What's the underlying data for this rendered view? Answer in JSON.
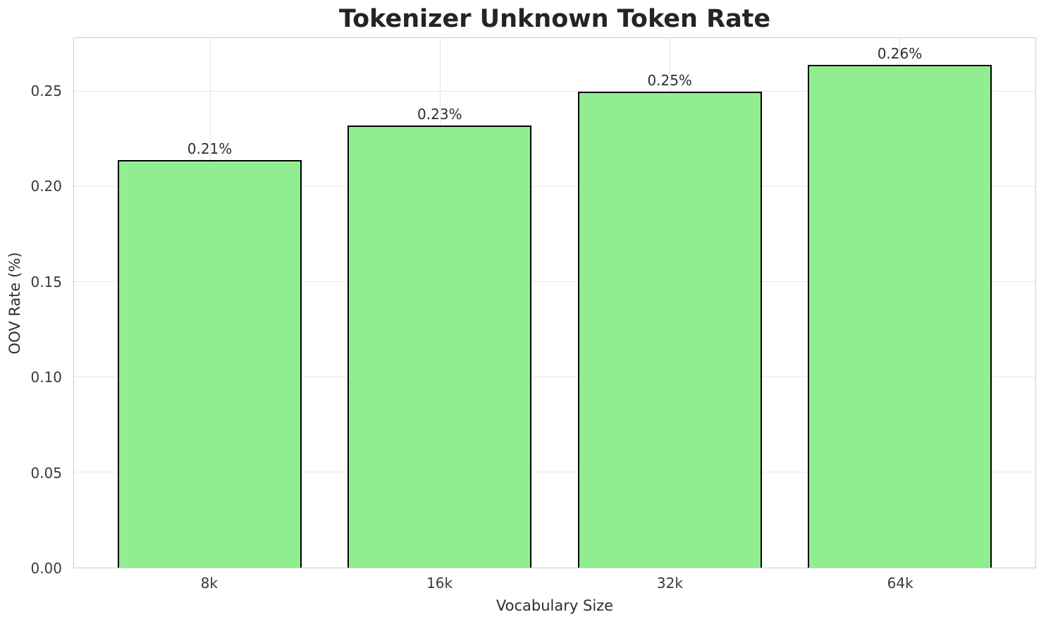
{
  "chart_data": {
    "type": "bar",
    "title": "Tokenizer Unknown Token Rate",
    "xlabel": "Vocabulary Size",
    "ylabel": "OOV Rate (%)",
    "categories": [
      "8k",
      "16k",
      "32k",
      "64k"
    ],
    "values": [
      0.214,
      0.232,
      0.25,
      0.264
    ],
    "bar_labels": [
      "0.21%",
      "0.23%",
      "0.25%",
      "0.26%"
    ],
    "ylim": [
      0,
      0.278
    ],
    "ytick_values": [
      0.0,
      0.05,
      0.1,
      0.15,
      0.2,
      0.25
    ],
    "ytick_labels": [
      "0.00",
      "0.05",
      "0.10",
      "0.15",
      "0.20",
      "0.25"
    ],
    "grid": true,
    "legend": "none",
    "bar_width_frac": 0.8,
    "colors": {
      "bar_fill": "#90EE90",
      "bar_edge": "#000000",
      "grid": "#e8e8e8",
      "spine": "#cccccc",
      "text": "#2e2e2e"
    }
  }
}
